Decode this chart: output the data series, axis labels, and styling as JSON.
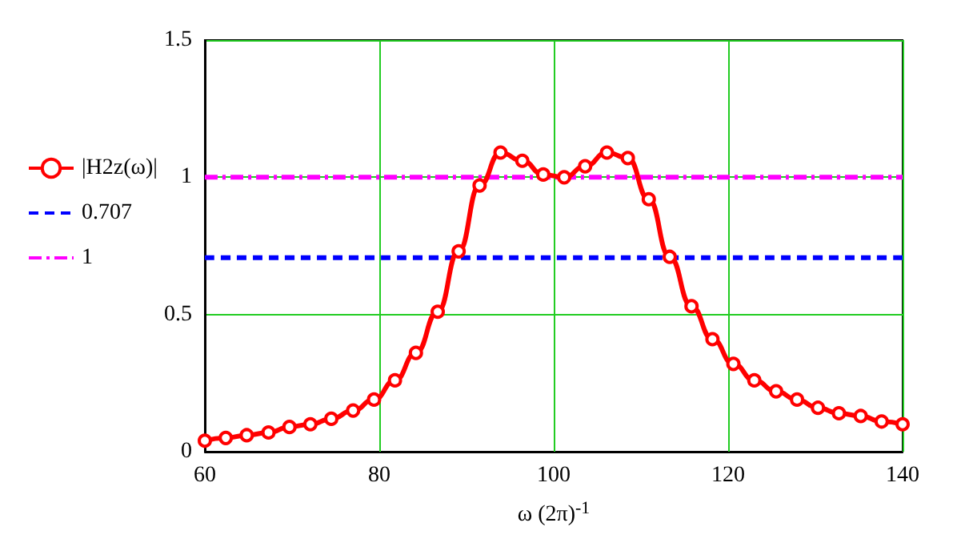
{
  "chart_data": {
    "type": "line",
    "xlabel": "ω (2π)$^{-1}$",
    "x": [
      60,
      62.4,
      64.8,
      67.3,
      69.7,
      72.1,
      74.5,
      77.0,
      79.4,
      81.8,
      84.2,
      86.7,
      89.1,
      91.5,
      93.9,
      96.4,
      98.8,
      101.2,
      103.6,
      106.1,
      108.5,
      110.9,
      113.3,
      115.8,
      118.2,
      120.6,
      123.0,
      125.5,
      127.9,
      130.3,
      132.7,
      135.2,
      137.6,
      140
    ],
    "series": [
      {
        "name": "|H2z(ω)|",
        "color": "#ff0000",
        "marker": "circle",
        "line_style": "solid",
        "values": [
          0.04,
          0.05,
          0.06,
          0.07,
          0.09,
          0.1,
          0.12,
          0.15,
          0.19,
          0.26,
          0.36,
          0.51,
          0.73,
          0.97,
          1.09,
          1.06,
          1.01,
          1.0,
          1.04,
          1.09,
          1.07,
          0.92,
          0.71,
          0.53,
          0.41,
          0.32,
          0.26,
          0.22,
          0.19,
          0.16,
          0.14,
          0.13,
          0.11,
          0.1
        ]
      },
      {
        "name": "0.707",
        "color": "#0000ff",
        "marker": "none",
        "line_style": "dashed",
        "values": [
          0.707,
          0.707,
          0.707,
          0.707,
          0.707,
          0.707,
          0.707,
          0.707,
          0.707,
          0.707,
          0.707,
          0.707,
          0.707,
          0.707,
          0.707,
          0.707,
          0.707,
          0.707,
          0.707,
          0.707,
          0.707,
          0.707,
          0.707,
          0.707,
          0.707,
          0.707,
          0.707,
          0.707,
          0.707,
          0.707,
          0.707,
          0.707,
          0.707,
          0.707
        ]
      },
      {
        "name": "1",
        "color": "#ff00ff",
        "marker": "none",
        "line_style": "dotted",
        "values": [
          1,
          1,
          1,
          1,
          1,
          1,
          1,
          1,
          1,
          1,
          1,
          1,
          1,
          1,
          1,
          1,
          1,
          1,
          1,
          1,
          1,
          1,
          1,
          1,
          1,
          1,
          1,
          1,
          1,
          1,
          1,
          1,
          1,
          1
        ]
      }
    ],
    "xlim": [
      60,
      140
    ],
    "xticks": [
      60,
      80,
      100,
      120,
      140
    ],
    "ylim": [
      0,
      1.5
    ],
    "yticks": [
      0,
      0.5,
      1,
      1.5
    ],
    "grid": true,
    "legend": "left"
  }
}
